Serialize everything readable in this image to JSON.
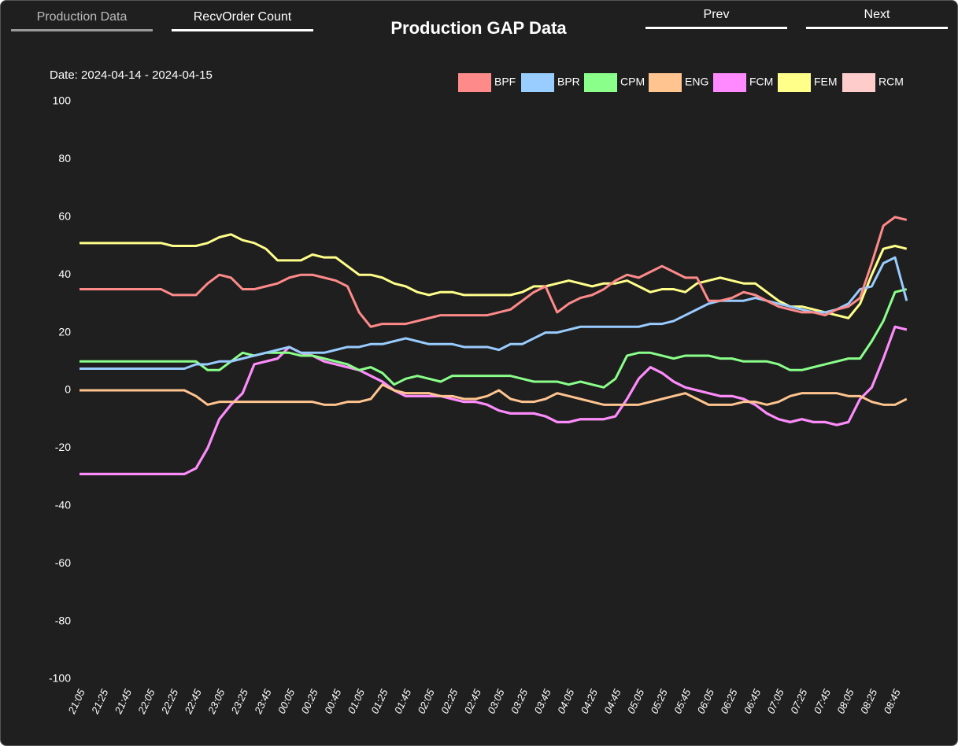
{
  "nav": {
    "tabs": [
      "Production Data",
      "RecvOrder Count"
    ],
    "buttons": [
      "Prev",
      "Next"
    ]
  },
  "chart_data": {
    "type": "line",
    "title": "Production GAP Data",
    "subtitle": "Date: 2024-04-14 - 2024-04-15",
    "categories": [
      "21:05",
      null,
      "21:25",
      null,
      "21:45",
      null,
      "22:05",
      null,
      "22:25",
      null,
      "22:45",
      null,
      "23:05",
      null,
      "23:25",
      null,
      "23:45",
      null,
      "00:05",
      null,
      "00:25",
      null,
      "00:45",
      null,
      "01:05",
      null,
      "01:25",
      null,
      "01:45",
      null,
      "02:05",
      null,
      "02:25",
      null,
      "02:45",
      null,
      "03:05",
      null,
      "03:25",
      null,
      "03:45",
      null,
      "04:05",
      null,
      "04:25",
      null,
      "04:45",
      null,
      "05:05",
      null,
      "05:25",
      null,
      "05:45",
      null,
      "06:05",
      null,
      "06:25",
      null,
      "06:45",
      null,
      "07:05",
      null,
      "07:25",
      null,
      "07:45",
      null,
      "08:05",
      null,
      "08:25",
      null,
      "08:45",
      null
    ],
    "ylim": [
      -100,
      100
    ],
    "yticks": [
      -100,
      -80,
      -60,
      -40,
      -20,
      0,
      20,
      40,
      60,
      80,
      100
    ],
    "grid": false,
    "legend": "top-right",
    "series": [
      {
        "name": "BPF",
        "color": "#ff8a8a",
        "values": [
          35,
          35,
          35,
          35,
          35,
          35,
          35,
          35,
          33,
          33,
          33,
          37,
          40,
          39,
          35,
          35,
          36,
          37,
          39,
          40,
          40,
          39,
          38,
          36,
          27,
          22,
          23,
          23,
          23,
          24,
          25,
          26,
          26,
          26,
          26,
          26,
          27,
          28,
          31,
          34,
          36,
          27,
          30,
          32,
          33,
          35,
          38,
          40,
          39,
          41,
          43,
          41,
          39,
          39,
          31,
          31,
          32,
          34,
          33,
          31,
          29,
          28,
          27,
          27,
          26,
          28,
          29,
          32,
          44,
          57,
          60,
          59
        ]
      },
      {
        "name": "BPR",
        "color": "#99ccff",
        "values": [
          7.5,
          7.5,
          7.5,
          7.5,
          7.5,
          7.5,
          7.5,
          7.5,
          7.5,
          7.5,
          9,
          9,
          10,
          10,
          11,
          12,
          13,
          14,
          15,
          13,
          13,
          13,
          14,
          15,
          15,
          16,
          16,
          17,
          18,
          17,
          16,
          16,
          16,
          15,
          15,
          15,
          14,
          16,
          16,
          18,
          20,
          20,
          21,
          22,
          22,
          22,
          22,
          22,
          22,
          23,
          23,
          24,
          26,
          28,
          30,
          31,
          31,
          31,
          32,
          31,
          30,
          29,
          28,
          27,
          27,
          28,
          30,
          35,
          36,
          44,
          46,
          31
        ]
      },
      {
        "name": "CPM",
        "color": "#8aff8a",
        "values": [
          10,
          10,
          10,
          10,
          10,
          10,
          10,
          10,
          10,
          10,
          10,
          7,
          7,
          10,
          13,
          12,
          13,
          13,
          13,
          12,
          12,
          11,
          10,
          9,
          7,
          8,
          6,
          2,
          4,
          5,
          4,
          3,
          5,
          5,
          5,
          5,
          5,
          5,
          4,
          3,
          3,
          3,
          2,
          3,
          2,
          1,
          4,
          12,
          13,
          13,
          12,
          11,
          12,
          12,
          12,
          11,
          11,
          10,
          10,
          10,
          9,
          7,
          7,
          8,
          9,
          10,
          11,
          11,
          17,
          24,
          34,
          35
        ]
      },
      {
        "name": "ENG",
        "color": "#ffc48f",
        "values": [
          0,
          0,
          0,
          0,
          0,
          0,
          0,
          0,
          0,
          0,
          -2,
          -5,
          -4,
          -4,
          -4,
          -4,
          -4,
          -4,
          -4,
          -4,
          -4,
          -5,
          -5,
          -4,
          -4,
          -3,
          2,
          0,
          -1,
          -1,
          -1,
          -2,
          -2,
          -3,
          -3,
          -2,
          0,
          -3,
          -4,
          -4,
          -3,
          -1,
          -2,
          -3,
          -4,
          -5,
          -5,
          -5,
          -5,
          -4,
          -3,
          -2,
          -1,
          -3,
          -5,
          -5,
          -5,
          -4,
          -4,
          -5,
          -4,
          -2,
          -1,
          -1,
          -1,
          -1,
          -2,
          -2,
          -4,
          -5,
          -5,
          -3
        ]
      },
      {
        "name": "FCM",
        "color": "#ff8aff",
        "values": [
          -29,
          -29,
          -29,
          -29,
          -29,
          -29,
          -29,
          -29,
          -29,
          -29,
          -27,
          -20,
          -10,
          -5,
          -1,
          9,
          10,
          11,
          15,
          13,
          12,
          10,
          9,
          8,
          7,
          5,
          3,
          0,
          -2,
          -2,
          -2,
          -2,
          -3,
          -4,
          -4,
          -5,
          -7,
          -8,
          -8,
          -8,
          -9,
          -11,
          -11,
          -10,
          -10,
          -10,
          -9,
          -3,
          4,
          8,
          6,
          3,
          1,
          0,
          -1,
          -2,
          -2,
          -3,
          -5,
          -8,
          -10,
          -11,
          -10,
          -11,
          -11,
          -12,
          -11,
          -3,
          1,
          11,
          22,
          21
        ]
      },
      {
        "name": "FEM",
        "color": "#ffff8a",
        "values": [
          51,
          51,
          51,
          51,
          51,
          51,
          51,
          51,
          50,
          50,
          50,
          51,
          53,
          54,
          52,
          51,
          49,
          45,
          45,
          45,
          47,
          46,
          46,
          43,
          40,
          40,
          39,
          37,
          36,
          34,
          33,
          34,
          34,
          33,
          33,
          33,
          33,
          33,
          34,
          36,
          36,
          37,
          38,
          37,
          36,
          37,
          37,
          38,
          36,
          34,
          35,
          35,
          34,
          37,
          38,
          39,
          38,
          37,
          37,
          34,
          31,
          29,
          29,
          28,
          27,
          26,
          25,
          30,
          40,
          49,
          50,
          49
        ]
      },
      {
        "name": "RCM",
        "color": "#ffcccc",
        "values": [
          -29,
          -29,
          -29,
          -29,
          -29,
          -29,
          -29,
          -29,
          -29,
          -29,
          -27,
          -20,
          -10,
          -5,
          -1,
          9,
          10,
          11,
          15,
          13,
          12,
          10,
          9,
          8,
          7,
          5,
          3,
          0,
          -2,
          -2,
          -2,
          -2,
          -3,
          -4,
          -4,
          -5,
          -7,
          -8,
          -8,
          -8,
          -9,
          -11,
          -11,
          -10,
          -10,
          -10,
          -9,
          -3,
          4,
          8,
          6,
          3,
          1,
          0,
          -1,
          -2,
          -2,
          -3,
          -5,
          -8,
          -10,
          -11,
          -10,
          -11,
          -11,
          -12,
          -11,
          -3,
          1,
          11,
          22,
          21
        ]
      }
    ]
  }
}
